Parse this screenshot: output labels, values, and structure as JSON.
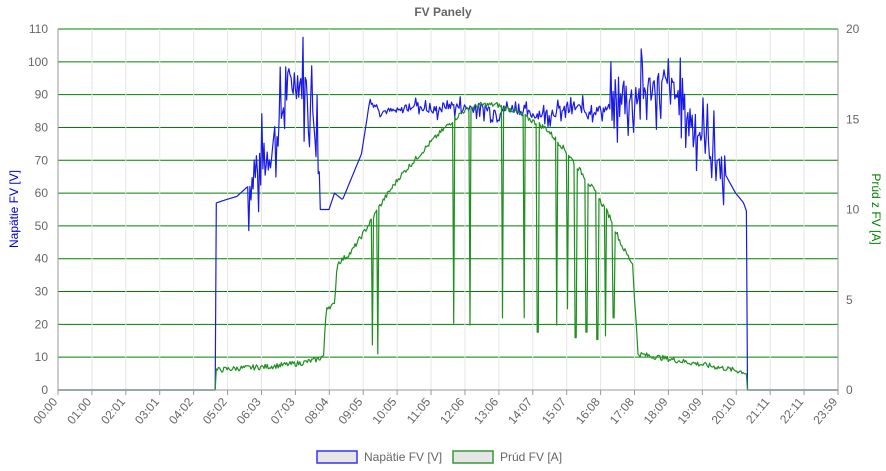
{
  "chart_data": {
    "type": "line",
    "title": "FV Panely",
    "x_labels": [
      "00:00",
      "01:00",
      "02:01",
      "03:01",
      "04:02",
      "05:02",
      "06:03",
      "07:03",
      "08:04",
      "09:05",
      "10:05",
      "11:05",
      "12:06",
      "13:06",
      "14:07",
      "15:07",
      "16:08",
      "17:08",
      "18:09",
      "19:09",
      "20:10",
      "21:11",
      "22:11",
      "23:59"
    ],
    "y_left": {
      "label": "Napätie FV [V]",
      "min": 0,
      "max": 110,
      "ticks": [
        0,
        10,
        20,
        30,
        40,
        50,
        60,
        70,
        80,
        90,
        100,
        110
      ],
      "color": "#0000CD"
    },
    "y_right": {
      "label": "Prúd z FV [A]",
      "min": 0,
      "max": 20,
      "ticks": [
        0,
        5,
        10,
        15,
        20
      ],
      "color": "#008000"
    },
    "grid": true,
    "grid_color": "#008000",
    "legend_position": "bottom",
    "series": [
      {
        "name": "Napätie FV [V]",
        "axis": "left",
        "color": "#1a1ae6",
        "points": [
          [
            "00:00",
            0
          ],
          [
            "04:50",
            0
          ],
          [
            "04:52",
            57
          ],
          [
            "05:10",
            58
          ],
          [
            "05:30",
            59
          ],
          [
            "05:50",
            62
          ],
          [
            "06:10",
            66
          ],
          [
            "06:30",
            72
          ],
          [
            "06:50",
            82
          ],
          [
            "07:03",
            92
          ],
          [
            "07:20",
            95
          ],
          [
            "07:40",
            92
          ],
          [
            "08:00",
            78
          ],
          [
            "08:04",
            55
          ],
          [
            "08:20",
            55
          ],
          [
            "08:30",
            60
          ],
          [
            "08:45",
            58
          ],
          [
            "09:00",
            64
          ],
          [
            "09:20",
            72
          ],
          [
            "09:35",
            88
          ],
          [
            "10:00",
            85
          ],
          [
            "10:30",
            85
          ],
          [
            "11:00",
            87
          ],
          [
            "11:30",
            85
          ],
          [
            "12:00",
            87
          ],
          [
            "12:30",
            86
          ],
          [
            "13:00",
            86
          ],
          [
            "13:30",
            85
          ],
          [
            "14:00",
            86
          ],
          [
            "14:30",
            84
          ],
          [
            "15:00",
            84
          ],
          [
            "15:30",
            85
          ],
          [
            "16:00",
            86
          ],
          [
            "16:30",
            85
          ],
          [
            "17:00",
            86
          ],
          [
            "17:30",
            88
          ],
          [
            "18:09",
            92
          ],
          [
            "18:30",
            93
          ],
          [
            "19:00",
            90
          ],
          [
            "19:30",
            82
          ],
          [
            "20:00",
            75
          ],
          [
            "20:30",
            66
          ],
          [
            "20:50",
            60
          ],
          [
            "21:05",
            57
          ],
          [
            "21:11",
            54
          ],
          [
            "21:12",
            0
          ],
          [
            "23:59",
            0
          ]
        ],
        "oscillation": [
          {
            "from": "05:50",
            "to": "08:00",
            "amplitude": 18
          },
          {
            "from": "09:35",
            "to": "11:30",
            "amplitude": 3
          },
          {
            "from": "11:30",
            "to": "17:00",
            "amplitude": 4
          },
          {
            "from": "17:00",
            "to": "20:30",
            "amplitude": 14
          }
        ]
      },
      {
        "name": "Prúd FV [A]",
        "axis": "right",
        "color": "#1f8f1f",
        "points": [
          [
            "00:00",
            0
          ],
          [
            "04:50",
            0
          ],
          [
            "04:52",
            1.1
          ],
          [
            "05:30",
            1.2
          ],
          [
            "06:30",
            1.3
          ],
          [
            "07:30",
            1.5
          ],
          [
            "08:00",
            1.7
          ],
          [
            "08:10",
            1.9
          ],
          [
            "08:15",
            4.6
          ],
          [
            "08:30",
            4.7
          ],
          [
            "08:35",
            7.0
          ],
          [
            "09:00",
            7.6
          ],
          [
            "09:30",
            9.0
          ],
          [
            "10:00",
            10.5
          ],
          [
            "10:30",
            11.8
          ],
          [
            "11:00",
            12.8
          ],
          [
            "11:30",
            13.8
          ],
          [
            "12:00",
            14.7
          ],
          [
            "12:30",
            15.5
          ],
          [
            "13:00",
            15.8
          ],
          [
            "13:30",
            15.8
          ],
          [
            "14:00",
            15.5
          ],
          [
            "14:30",
            15.0
          ],
          [
            "15:00",
            14.5
          ],
          [
            "15:30",
            13.5
          ],
          [
            "16:00",
            12.3
          ],
          [
            "16:30",
            11.0
          ],
          [
            "17:00",
            9.5
          ],
          [
            "17:20",
            8.0
          ],
          [
            "17:40",
            7.0
          ],
          [
            "17:50",
            2.0
          ],
          [
            "18:30",
            1.8
          ],
          [
            "19:30",
            1.5
          ],
          [
            "20:30",
            1.2
          ],
          [
            "21:05",
            1.0
          ],
          [
            "21:11",
            0.9
          ],
          [
            "21:12",
            0
          ],
          [
            "23:59",
            0
          ]
        ],
        "dips": [
          [
            "09:40",
            2.5
          ],
          [
            "09:50",
            2.0
          ],
          [
            "12:10",
            3.7
          ],
          [
            "12:40",
            3.6
          ],
          [
            "13:40",
            4.0
          ],
          [
            "14:20",
            4.0
          ],
          [
            "14:45",
            3.2
          ],
          [
            "15:20",
            3.6
          ],
          [
            "15:40",
            4.5
          ],
          [
            "15:55",
            2.9
          ],
          [
            "16:15",
            3.2
          ],
          [
            "16:35",
            2.8
          ],
          [
            "16:50",
            3.0
          ],
          [
            "17:05",
            4.0
          ]
        ]
      }
    ]
  }
}
